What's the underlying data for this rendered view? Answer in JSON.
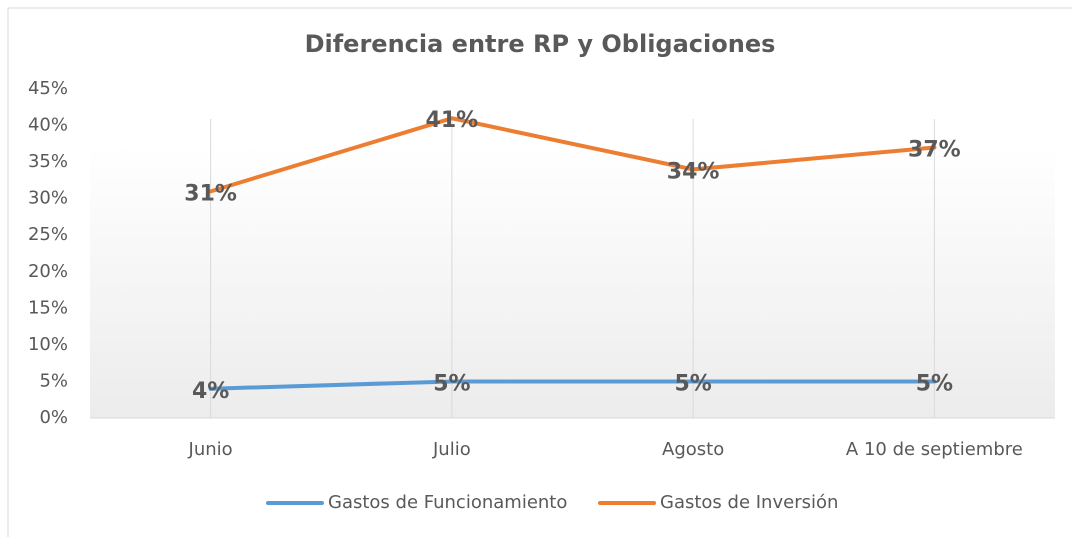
{
  "chart_data": {
    "type": "line",
    "title": "Diferencia entre RP y Obligaciones",
    "categories": [
      "Junio",
      "Julio",
      "Agosto",
      "A 10 de septiembre"
    ],
    "series": [
      {
        "name": "Gastos de Funcionamiento",
        "color": "#5b9bd5",
        "values": [
          4,
          5,
          5,
          5
        ],
        "value_labels": [
          "4%",
          "5%",
          "5%",
          "5%"
        ]
      },
      {
        "name": "Gastos de Inversión",
        "color": "#ed7d31",
        "values": [
          31,
          41,
          34,
          37
        ],
        "value_labels": [
          "31%",
          "41%",
          "34%",
          "37%"
        ]
      }
    ],
    "ylim": [
      0,
      45
    ],
    "yticks": [
      {
        "value": 0,
        "label": "0%"
      },
      {
        "value": 5,
        "label": "5%"
      },
      {
        "value": 10,
        "label": "10%"
      },
      {
        "value": 15,
        "label": "15%"
      },
      {
        "value": 20,
        "label": "20%"
      },
      {
        "value": 25,
        "label": "25%"
      },
      {
        "value": 30,
        "label": "30%"
      },
      {
        "value": 35,
        "label": "35%"
      },
      {
        "value": 40,
        "label": "40%"
      },
      {
        "value": 45,
        "label": "45%"
      }
    ],
    "grid": "x",
    "legend": "bottom"
  }
}
